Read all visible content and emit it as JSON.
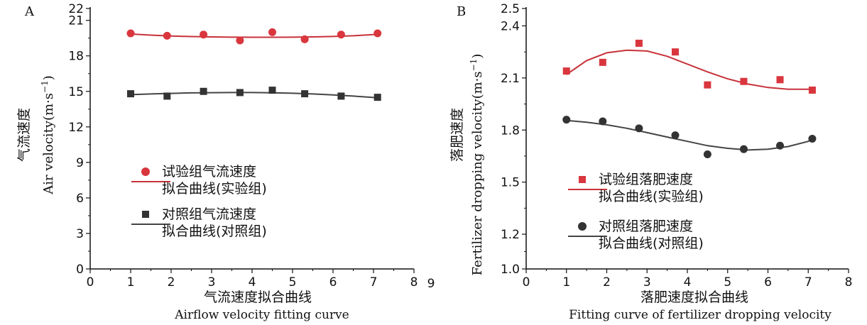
{
  "chart_data": [
    {
      "type": "scatter",
      "panel_label": "A",
      "xlabel_cn": "气流速度拟合曲线",
      "xlabel_en": "Airflow velocity fitting curve",
      "ylabel_cn": "气流速度",
      "ylabel_en": "Air velocity(m·s",
      "ylabel_unit_sup": "−1",
      "ylabel_close": ")",
      "xlim": [
        0,
        8
      ],
      "ylim": [
        0,
        22
      ],
      "xticks": [
        "0",
        "1",
        "2",
        "3",
        "4",
        "5",
        "6",
        "7",
        "8"
      ],
      "yticks": [
        "0",
        "3",
        "6",
        "9",
        "12",
        "15",
        "18",
        "21",
        "22"
      ],
      "extra_tick": "9",
      "grid": false,
      "legend_position": "center",
      "series": [
        {
          "name": "试验组气流速度",
          "fit_name": "拟合曲线(实验组)",
          "marker": "circle",
          "color": "#d9363e",
          "line_color": "#c8323a",
          "x": [
            1.0,
            1.9,
            2.8,
            3.7,
            4.5,
            5.3,
            6.2,
            7.1
          ],
          "y": [
            19.9,
            19.7,
            19.8,
            19.3,
            20.0,
            19.4,
            19.8,
            19.9
          ],
          "fit_x": [
            1.0,
            1.5,
            2.0,
            2.5,
            3.0,
            3.5,
            4.0,
            4.5,
            5.0,
            5.5,
            6.0,
            6.5,
            7.0,
            7.1
          ],
          "fit_y": [
            19.85,
            19.75,
            19.68,
            19.63,
            19.6,
            19.58,
            19.57,
            19.57,
            19.58,
            19.6,
            19.64,
            19.7,
            19.8,
            19.83
          ]
        },
        {
          "name": "对照组气流速度",
          "fit_name": "拟合曲线(对照组)",
          "marker": "square",
          "color": "#333333",
          "line_color": "#444444",
          "x": [
            1.0,
            1.9,
            2.8,
            3.7,
            4.5,
            5.3,
            6.2,
            7.1
          ],
          "y": [
            14.8,
            14.6,
            15.0,
            14.9,
            15.1,
            14.8,
            14.6,
            14.5
          ],
          "fit_x": [
            1.0,
            1.5,
            2.0,
            2.5,
            3.0,
            3.5,
            4.0,
            4.5,
            5.0,
            5.5,
            6.0,
            6.5,
            7.0,
            7.1
          ],
          "fit_y": [
            14.72,
            14.78,
            14.83,
            14.87,
            14.89,
            14.9,
            14.9,
            14.88,
            14.84,
            14.78,
            14.7,
            14.6,
            14.48,
            14.46
          ]
        }
      ]
    },
    {
      "type": "scatter",
      "panel_label": "B",
      "xlabel_cn": "落肥速度拟合曲线",
      "xlabel_en": "Fitting curve of fertilizer dropping velocity",
      "ylabel_cn": "落肥速度",
      "ylabel_en": "Fertilizer dropping velocity(m·s",
      "ylabel_unit_sup": "−1",
      "ylabel_close": ")",
      "xlim": [
        0,
        8
      ],
      "ylim": [
        1.0,
        2.5
      ],
      "xticks": [
        "0",
        "1",
        "2",
        "3",
        "4",
        "5",
        "6",
        "7",
        "8"
      ],
      "yticks": [
        "1.0",
        "1.2",
        "1.5",
        "1.8",
        "2.1",
        "2.4",
        "2.5"
      ],
      "grid": false,
      "legend_position": "center-left",
      "series": [
        {
          "name": "试验组落肥速度",
          "fit_name": "拟合曲线(实验组)",
          "marker": "square",
          "color": "#d9363e",
          "line_color": "#c8323a",
          "x": [
            1.0,
            1.9,
            2.8,
            3.7,
            4.5,
            5.4,
            6.3,
            7.1
          ],
          "y": [
            2.14,
            2.19,
            2.3,
            2.25,
            2.06,
            2.08,
            2.09,
            2.03
          ],
          "fit_x": [
            1.0,
            1.5,
            2.0,
            2.5,
            3.0,
            3.5,
            4.0,
            4.5,
            5.0,
            5.5,
            6.0,
            6.5,
            7.0,
            7.1
          ],
          "fit_y": [
            2.12,
            2.2,
            2.245,
            2.26,
            2.255,
            2.225,
            2.18,
            2.135,
            2.095,
            2.065,
            2.045,
            2.035,
            2.035,
            2.04
          ]
        },
        {
          "name": "对照组落肥速度",
          "fit_name": "拟合曲线(对照组)",
          "marker": "circle",
          "color": "#333333",
          "line_color": "#444444",
          "x": [
            1.0,
            1.9,
            2.8,
            3.7,
            4.5,
            5.4,
            6.3,
            7.1
          ],
          "y": [
            1.86,
            1.85,
            1.81,
            1.77,
            1.66,
            1.69,
            1.71,
            1.75
          ],
          "fit_x": [
            1.0,
            1.5,
            2.0,
            2.5,
            3.0,
            3.5,
            4.0,
            4.5,
            5.0,
            5.5,
            6.0,
            6.5,
            7.0,
            7.1
          ],
          "fit_y": [
            1.855,
            1.845,
            1.83,
            1.81,
            1.785,
            1.76,
            1.735,
            1.71,
            1.695,
            1.685,
            1.69,
            1.705,
            1.735,
            1.745
          ]
        }
      ]
    }
  ]
}
